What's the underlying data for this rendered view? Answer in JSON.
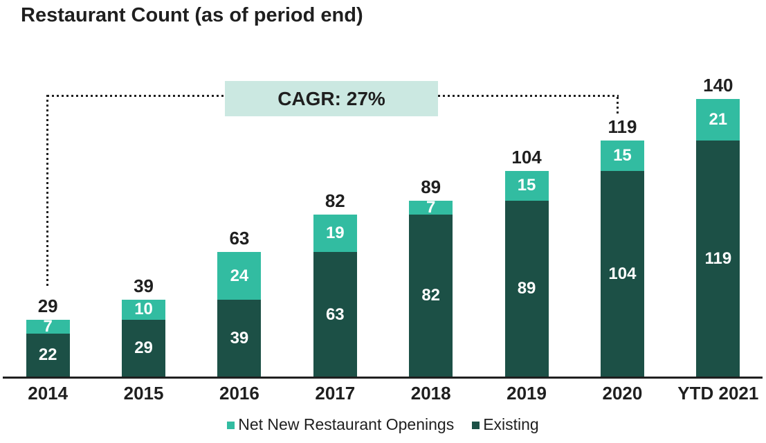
{
  "title": "Restaurant Count (as of period end)",
  "cagr": {
    "label": "CAGR: 27%"
  },
  "colors": {
    "net_new": "#32bca1",
    "existing": "#1c5046",
    "cagr_box_bg": "#cbe8e1",
    "text": "#1f1f1f",
    "bar_value_text": "#ffffff"
  },
  "legend": [
    {
      "label": "Net New Restaurant Openings",
      "color_key": "net_new"
    },
    {
      "label": "Existing",
      "color_key": "existing"
    }
  ],
  "chart_data": {
    "type": "bar",
    "stacked": true,
    "title": "Restaurant Count (as of period end)",
    "annotation": "CAGR: 27%",
    "categories": [
      "2014",
      "2015",
      "2016",
      "2017",
      "2018",
      "2019",
      "2020",
      "YTD 2021"
    ],
    "series": [
      {
        "name": "Existing",
        "values": [
          22,
          29,
          39,
          63,
          82,
          89,
          104,
          119
        ]
      },
      {
        "name": "Net New Restaurant Openings",
        "values": [
          7,
          10,
          24,
          19,
          7,
          15,
          15,
          21
        ]
      }
    ],
    "totals": [
      29,
      39,
      63,
      82,
      89,
      104,
      119,
      140
    ],
    "ylim": [
      0,
      150
    ],
    "grid": false,
    "legend_position": "bottom",
    "value_labels": "inside-segments-and-total-above"
  }
}
